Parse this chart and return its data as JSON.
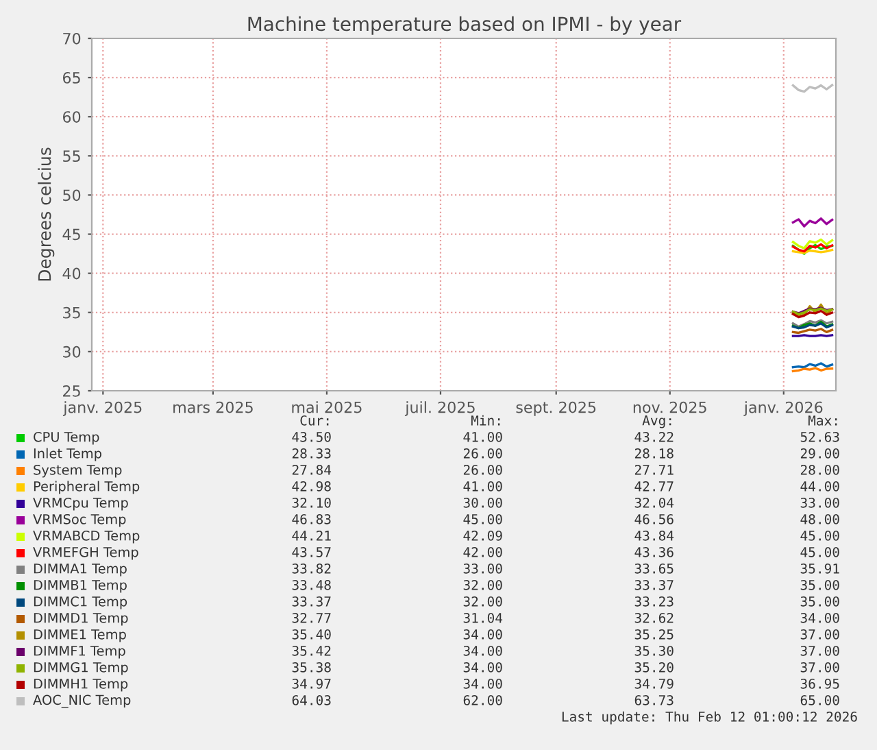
{
  "chart_data": {
    "type": "line",
    "title": "Machine temperature based on IPMI - by year",
    "ylabel": "Degrees celcius",
    "x": [
      "2026-01-06",
      "2026-01-09",
      "2026-01-12",
      "2026-01-15",
      "2026-01-18",
      "2026-01-21",
      "2026-01-24",
      "2026-01-27"
    ],
    "xlim": [
      "2024-12-26",
      "2026-01-29"
    ],
    "xticks": [
      {
        "value": "2025-01-01",
        "label": "janv. 2025"
      },
      {
        "value": "2025-03-01",
        "label": "mars 2025"
      },
      {
        "value": "2025-05-01",
        "label": "mai 2025"
      },
      {
        "value": "2025-07-01",
        "label": "juil. 2025"
      },
      {
        "value": "2025-09-01",
        "label": "sept. 2025"
      },
      {
        "value": "2025-11-01",
        "label": "nov. 2025"
      },
      {
        "value": "2026-01-01",
        "label": "janv. 2026"
      }
    ],
    "ylim": [
      25,
      70
    ],
    "yticks": [
      25,
      30,
      35,
      40,
      45,
      50,
      55,
      60,
      65,
      70
    ],
    "grid": true,
    "legend": "bottom",
    "marker": "none",
    "line_style": "solid",
    "series": [
      {
        "name": "CPU Temp",
        "color": "#00cc00",
        "values": [
          43.5,
          43.0,
          42.5,
          43.2,
          43.6,
          43.1,
          43.4,
          43.5
        ]
      },
      {
        "name": "Inlet Temp",
        "color": "#0066b3",
        "values": [
          28.0,
          28.1,
          28.0,
          28.4,
          28.2,
          28.5,
          28.1,
          28.33
        ]
      },
      {
        "name": "System Temp",
        "color": "#ff8000",
        "values": [
          27.5,
          27.6,
          27.8,
          27.7,
          27.9,
          27.6,
          27.8,
          27.84
        ]
      },
      {
        "name": "Peripheral Temp",
        "color": "#ffcc00",
        "values": [
          42.8,
          42.7,
          42.6,
          42.9,
          42.8,
          42.7,
          42.8,
          42.98
        ]
      },
      {
        "name": "VRMCpu Temp",
        "color": "#330099",
        "values": [
          32.0,
          32.0,
          32.1,
          32.0,
          32.0,
          32.1,
          32.0,
          32.1
        ]
      },
      {
        "name": "VRMSoc Temp",
        "color": "#990099",
        "values": [
          46.5,
          46.9,
          46.0,
          46.7,
          46.4,
          47.0,
          46.3,
          46.83
        ]
      },
      {
        "name": "VRMABCD Temp",
        "color": "#ccff00",
        "values": [
          44.0,
          43.5,
          43.2,
          44.1,
          43.9,
          44.3,
          43.7,
          44.21
        ]
      },
      {
        "name": "VRMEFGH Temp",
        "color": "#ff0000",
        "values": [
          43.4,
          43.0,
          42.8,
          43.5,
          43.3,
          43.7,
          43.2,
          43.57
        ]
      },
      {
        "name": "DIMMA1 Temp",
        "color": "#808080",
        "values": [
          33.6,
          33.2,
          33.5,
          33.9,
          33.7,
          34.0,
          33.6,
          33.82
        ]
      },
      {
        "name": "DIMMB1 Temp",
        "color": "#008f00",
        "values": [
          33.3,
          33.0,
          33.4,
          33.6,
          33.3,
          33.8,
          33.2,
          33.48
        ]
      },
      {
        "name": "DIMMC1 Temp",
        "color": "#00487d",
        "values": [
          33.2,
          33.0,
          33.1,
          33.4,
          33.3,
          33.6,
          33.1,
          33.37
        ]
      },
      {
        "name": "DIMMD1 Temp",
        "color": "#b35a00",
        "values": [
          32.5,
          32.4,
          32.6,
          32.8,
          32.7,
          32.9,
          32.5,
          32.77
        ]
      },
      {
        "name": "DIMME1 Temp",
        "color": "#b38f00",
        "values": [
          34.9,
          34.5,
          34.7,
          35.8,
          35.0,
          36.0,
          34.8,
          35.4
        ]
      },
      {
        "name": "DIMMF1 Temp",
        "color": "#6b006b",
        "values": [
          35.1,
          34.9,
          35.2,
          35.5,
          35.4,
          35.6,
          35.3,
          35.42
        ]
      },
      {
        "name": "DIMMG1 Temp",
        "color": "#8fb300",
        "values": [
          35.1,
          34.8,
          35.0,
          35.4,
          35.3,
          35.5,
          35.2,
          35.38
        ]
      },
      {
        "name": "DIMMH1 Temp",
        "color": "#b30000",
        "values": [
          34.8,
          34.4,
          34.6,
          35.0,
          34.9,
          35.2,
          34.7,
          34.97
        ]
      },
      {
        "name": "AOC_NIC Temp",
        "color": "#bebebe",
        "values": [
          64.0,
          63.4,
          63.2,
          63.8,
          63.6,
          64.0,
          63.5,
          64.03
        ]
      }
    ],
    "annotations": [
      "Cur:",
      "Min:",
      "Avg:",
      "Max:",
      "43.50",
      "41.00",
      "43.22",
      "52.63",
      "28.33",
      "26.00",
      "28.18",
      "29.00",
      "27.84",
      "26.00",
      "27.71",
      "28.00",
      "42.98",
      "41.00",
      "42.77",
      "44.00",
      "32.10",
      "30.00",
      "32.04",
      "33.00",
      "46.83",
      "45.00",
      "46.56",
      "48.00",
      "44.21",
      "42.09",
      "43.84",
      "45.00",
      "43.57",
      "42.00",
      "43.36",
      "45.00",
      "33.82",
      "33.00",
      "33.65",
      "35.91",
      "33.48",
      "32.00",
      "33.37",
      "35.00",
      "33.37",
      "32.00",
      "33.23",
      "35.00",
      "32.77",
      "31.04",
      "32.62",
      "34.00",
      "35.40",
      "34.00",
      "35.25",
      "37.00",
      "35.42",
      "34.00",
      "35.30",
      "37.00",
      "35.38",
      "34.00",
      "35.20",
      "37.00",
      "34.97",
      "34.00",
      "34.79",
      "36.95",
      "64.03",
      "62.00",
      "63.73",
      "65.00",
      "Last update: Thu Feb 12 01:00:12 2026"
    ]
  }
}
